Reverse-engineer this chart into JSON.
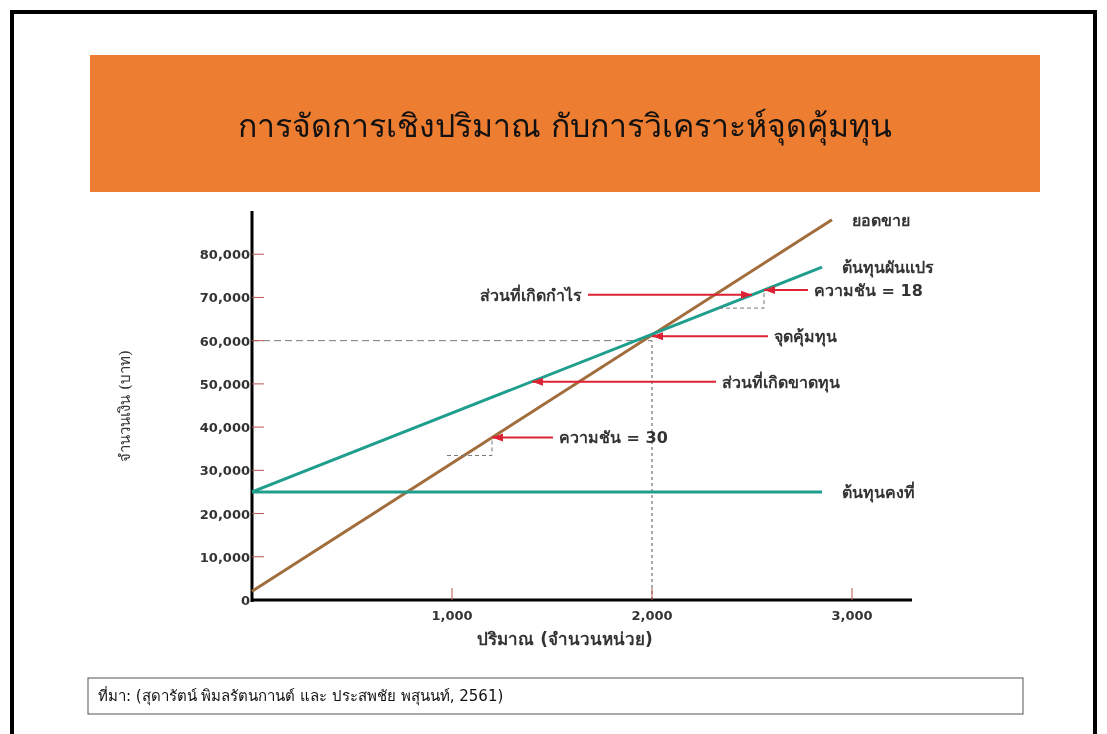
{
  "chart_data": {
    "type": "line",
    "title": "การจัดการเชิงปริมาณ กับการวิเคราะห์จุดคุ้มทุน",
    "xlabel": "ปริมาณ (จำนวนหน่วย)",
    "ylabel": "จำนวนเงิน (บาท)",
    "series": [
      {
        "name": "ยอดขาย",
        "color": "#a26d3c",
        "x": [
          0,
          2900
        ],
        "values": [
          2000,
          88000
        ]
      },
      {
        "name": "ต้นทุนผันแปร",
        "color": "#1f9e8e",
        "x": [
          0,
          2850
        ],
        "values": [
          25000,
          77000
        ]
      },
      {
        "name": "ต้นทุนคงที่",
        "color": "#1f9e8e",
        "x": [
          0,
          2850
        ],
        "values": [
          25000,
          25000
        ]
      }
    ],
    "xlim": [
      0,
      3300
    ],
    "ylim": [
      0,
      90000
    ],
    "xticks": [
      {
        "value": 1000,
        "label": "1,000"
      },
      {
        "value": 2000,
        "label": "2,000"
      },
      {
        "value": 3000,
        "label": "3,000"
      }
    ],
    "yticks": [
      0,
      {
        "value": 10000,
        "label": "10,000"
      },
      {
        "value": 20000,
        "label": "20,000"
      },
      {
        "value": 30000,
        "label": "30,000"
      },
      {
        "value": 40000,
        "label": "40,000"
      },
      {
        "value": 50000,
        "label": "50,000"
      },
      {
        "value": 60000,
        "label": "60,000"
      },
      {
        "value": 70000,
        "label": "70,000"
      },
      {
        "value": 80000,
        "label": "80,000"
      }
    ],
    "ref_lines": [
      {
        "axis": "y",
        "value": 60000,
        "line_style": "dashed"
      },
      {
        "axis": "x",
        "value": 2000,
        "line_style": "dotted"
      }
    ],
    "annotations": [
      {
        "text": "ส่วนที่เกิดกำไร",
        "x": 2500,
        "y": 70600
      },
      {
        "text": "ความชัน = 18",
        "x": 2560,
        "y": 71700
      },
      {
        "text": "จุดคุ้มทุน",
        "x": 2000,
        "y": 61000
      },
      {
        "text": "ส่วนที่เกิดขาดทุน",
        "x": 1400,
        "y": 50500
      },
      {
        "text": "ความชัน = 30",
        "x": 1200,
        "y": 37600
      },
      "ที่มา: (สุดารัตน์ พิมลรัตนกานต์ และ ประสพชัย พสุนนท์, 2561)"
    ]
  }
}
